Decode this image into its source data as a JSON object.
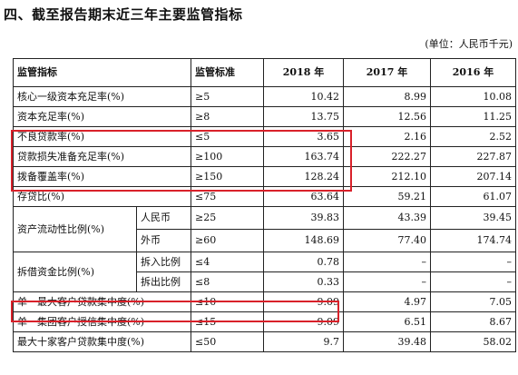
{
  "heading": "四、截至报告期末近三年主要监管指标",
  "unit_note": "(单位：人民币千元)",
  "highlight_color": "#d9212a",
  "table": {
    "headers": [
      "监管指标",
      "监管标准",
      "2018 年",
      "2017 年",
      "2016 年"
    ],
    "rows": [
      {
        "name": "核心一级资本充足率(%)",
        "standard": "≥5",
        "v2018": "10.42",
        "v2017": "8.99",
        "v2016": "10.08"
      },
      {
        "name": "资本充足率(%)",
        "standard": "≥8",
        "v2018": "13.75",
        "v2017": "12.56",
        "v2016": "11.25"
      },
      {
        "name": "不良贷款率(%)",
        "standard": "≤5",
        "v2018": "3.65",
        "v2017": "2.16",
        "v2016": "2.52"
      },
      {
        "name": "贷款损失准备充足率(%)",
        "standard": "≥100",
        "v2018": "163.74",
        "v2017": "222.27",
        "v2016": "227.87"
      },
      {
        "name": "拨备覆盖率(%)",
        "standard": "≥150",
        "v2018": "128.24",
        "v2017": "212.10",
        "v2016": "207.14"
      },
      {
        "name": "存贷比(%)",
        "standard": "≤75",
        "v2018": "63.64",
        "v2017": "59.21",
        "v2016": "61.07"
      }
    ],
    "liquidity": {
      "name": "资产流动性比例(%)",
      "rows": [
        {
          "sub": "人民币",
          "standard": "≥25",
          "v2018": "39.83",
          "v2017": "43.39",
          "v2016": "39.45"
        },
        {
          "sub": "外币",
          "standard": "≥60",
          "v2018": "148.69",
          "v2017": "77.40",
          "v2016": "174.74"
        }
      ]
    },
    "interbank": {
      "name": "拆借资金比例(%)",
      "rows": [
        {
          "sub": "拆入比例",
          "standard": "≤4",
          "v2018": "0.78",
          "v2017": "–",
          "v2016": "–"
        },
        {
          "sub": "拆出比例",
          "standard": "≤8",
          "v2018": "0.33",
          "v2017": "–",
          "v2016": "–"
        }
      ]
    },
    "bottom_rows": [
      {
        "name": "单一最大客户贷款集中度(%)",
        "standard": "≤10",
        "v2018": "9.09",
        "v2017": "4.97",
        "v2016": "7.05"
      },
      {
        "name": "单一集团客户授信集中度(%)",
        "standard": "≤15",
        "v2018": "9.09",
        "v2017": "6.51",
        "v2016": "8.67"
      },
      {
        "name": "最大十家客户贷款集中度(%)",
        "standard": "≤50",
        "v2018": "9.7",
        "v2017": "39.48",
        "v2016": "58.02"
      }
    ]
  }
}
